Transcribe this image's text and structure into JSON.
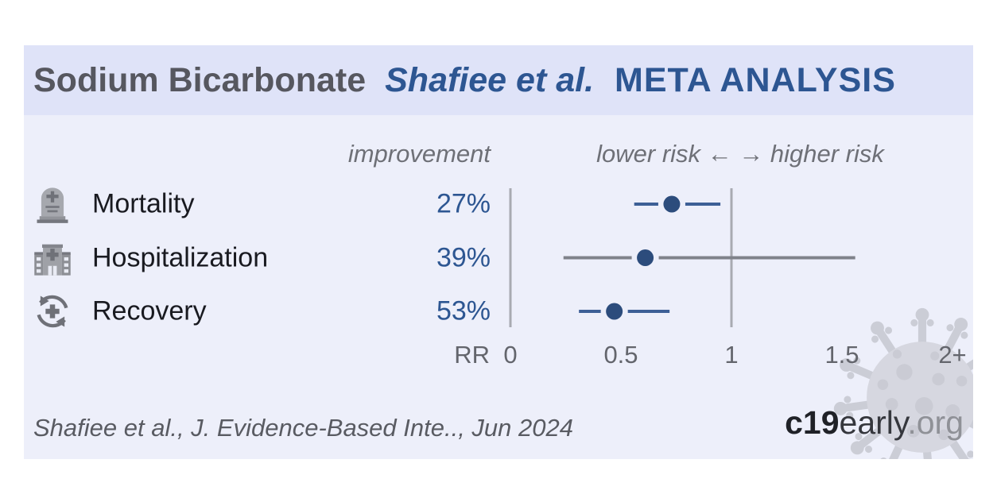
{
  "header": {
    "treatment": "Sodium Bicarbonate",
    "study": "Shafiee et al.",
    "analysis_type": "META ANALYSIS"
  },
  "column_headers": {
    "improvement": "improvement",
    "risk_direction": "lower risk ←  → higher risk"
  },
  "chart_data": {
    "type": "forest",
    "axis": {
      "label": "RR",
      "ticks": [
        {
          "label": "0",
          "value": 0
        },
        {
          "label": "0.5",
          "value": 0.5
        },
        {
          "label": "1",
          "value": 1
        },
        {
          "label": "1.5",
          "value": 1.5
        },
        {
          "label": "2+",
          "value": 2
        }
      ],
      "xlim": [
        0,
        2.2
      ],
      "reference_lines": [
        0,
        1
      ]
    },
    "rows": [
      {
        "outcome": "Mortality",
        "icon": "tombstone-icon",
        "improvement": "27%",
        "rr": 0.73,
        "ci": [
          0.56,
          0.95
        ],
        "significant": true
      },
      {
        "outcome": "Hospitalization",
        "icon": "hospital-icon",
        "improvement": "39%",
        "rr": 0.61,
        "ci": [
          0.24,
          1.56
        ],
        "significant": false
      },
      {
        "outcome": "Recovery",
        "icon": "recovery-icon",
        "improvement": "53%",
        "rr": 0.47,
        "ci": [
          0.31,
          0.72
        ],
        "significant": true
      }
    ],
    "colors": {
      "point": "#2c4c7c",
      "significant_line": "#3d5f96",
      "nonsignificant_line": "#7f828a",
      "reference_line": "#a8aab1",
      "improvement_text": "#2d5692"
    }
  },
  "footer": {
    "citation": "Shafiee et al., J. Evidence-Based Inte.., Jun 2024",
    "logo": {
      "bold": "c19",
      "name": "early",
      "tld": ".org"
    }
  }
}
